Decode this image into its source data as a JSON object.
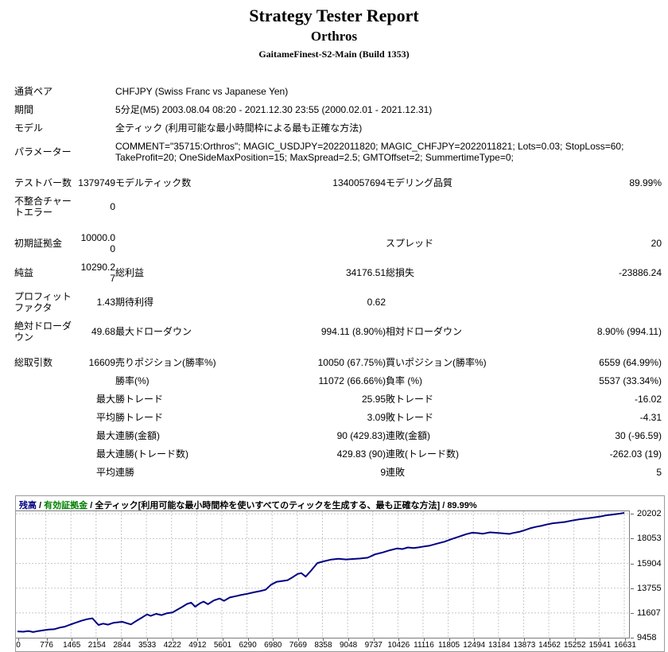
{
  "header": {
    "title": "Strategy Tester Report",
    "ea_name": "Orthros",
    "terminal": "GaitameFinest-S2-Main (Build 1353)"
  },
  "info_rows": [
    {
      "label": "通貨ペア",
      "value": "CHFJPY (Swiss Franc vs Japanese Yen)"
    },
    {
      "label": "期間",
      "value": "5分足(M5) 2003.08.04 08:20 - 2021.12.30 23:55 (2000.02.01 - 2021.12.31)"
    },
    {
      "label": "モデル",
      "value": "全ティック (利用可能な最小時間枠による最も正確な方法)"
    },
    {
      "label": "パラメーター",
      "value": "COMMENT=\"35715:Orthros\"; MAGIC_USDJPY=2022011820; MAGIC_CHFJPY=2022011821; Lots=0.03; StopLoss=60; TakeProfit=20; OneSideMaxPosition=15; MaxSpread=2.5; GMTOffset=2; SummertimeType=0;"
    }
  ],
  "stat_rows": [
    {
      "gap": true,
      "cells": [
        "テストバー数",
        "1379749",
        "モデルティック数",
        "1340057694",
        "モデリング品質",
        "89.99%"
      ]
    },
    {
      "gap": false,
      "cells": [
        "不整合チャートエラー",
        "0",
        "",
        "",
        "",
        ""
      ]
    },
    {
      "gap": true,
      "cells": [
        "初期証拠金",
        "10000.00",
        "",
        "",
        "スプレッド",
        "20"
      ]
    },
    {
      "gap": false,
      "cells": [
        "純益",
        "10290.27",
        "総利益",
        "34176.51",
        "総損失",
        "-23886.24"
      ]
    },
    {
      "gap": false,
      "cells": [
        "プロフィットファクタ",
        "1.43",
        "期待利得",
        "0.62",
        "",
        ""
      ]
    },
    {
      "gap": false,
      "cells": [
        "絶対ドローダウン",
        "49.68",
        "最大ドローダウン",
        "994.11 (8.90%)",
        "相対ドローダウン",
        "8.90% (994.11)"
      ]
    },
    {
      "gap": true,
      "cells": [
        "総取引数",
        "16609",
        "売りポジション(勝率%)",
        "10050 (67.75%)",
        "買いポジション(勝率%)",
        "6559 (64.99%)"
      ]
    },
    {
      "gap": false,
      "cells": [
        "",
        "",
        "勝率(%)",
        "11072 (66.66%)",
        "負率 (%)",
        "5537 (33.34%)"
      ]
    },
    {
      "gap": false,
      "cells": [
        "",
        "最大",
        "勝トレード",
        "25.95",
        "敗トレード",
        "-16.02"
      ]
    },
    {
      "gap": false,
      "cells": [
        "",
        "平均",
        "勝トレード",
        "3.09",
        "敗トレード",
        "-4.31"
      ]
    },
    {
      "gap": false,
      "cells": [
        "",
        "最大",
        "連勝(金額)",
        "90 (429.83)",
        "連敗(金額)",
        "30 (-96.59)"
      ]
    },
    {
      "gap": false,
      "cells": [
        "",
        "最大",
        "連勝(トレード数)",
        "429.83 (90)",
        "連敗(トレード数)",
        "-262.03 (19)"
      ]
    },
    {
      "gap": false,
      "cells": [
        "",
        "平均",
        "連勝",
        "9",
        "連敗",
        "5"
      ]
    }
  ],
  "chart_data": {
    "type": "line",
    "title": "",
    "xlabel": "",
    "ylabel": "",
    "x_max": 16631,
    "ylim": [
      9458,
      20430
    ],
    "x_ticks": [
      0,
      776,
      1465,
      2154,
      2844,
      3533,
      4222,
      4912,
      5601,
      6290,
      6980,
      7669,
      8358,
      9048,
      9737,
      10426,
      11116,
      11805,
      12494,
      13184,
      13873,
      14562,
      15252,
      15941,
      16631
    ],
    "y_ticks": [
      9458,
      11607,
      13755,
      15904,
      18053,
      20202
    ],
    "grid_color": "#c8c8c8",
    "plot_border_color": "#7a7a7a",
    "caption": {
      "balance_label": "残高",
      "equity_label": "有効証拠金",
      "separator": " / ",
      "model_label": "全ティック[利用可能な最小時間枠を使いすべてのティックを生成する、最も正確な方法]",
      "quality": "89.99%",
      "balance_color": "#000080",
      "equity_color": "#008000"
    },
    "series": [
      {
        "name": "残高",
        "color": "#000082",
        "points": [
          [
            0,
            10000
          ],
          [
            160,
            9975
          ],
          [
            300,
            10040
          ],
          [
            430,
            9951
          ],
          [
            560,
            10030
          ],
          [
            700,
            10090
          ],
          [
            850,
            10160
          ],
          [
            1000,
            10190
          ],
          [
            1150,
            10330
          ],
          [
            1300,
            10420
          ],
          [
            1450,
            10600
          ],
          [
            1600,
            10760
          ],
          [
            1750,
            10930
          ],
          [
            1900,
            11060
          ],
          [
            2050,
            11140
          ],
          [
            2130,
            10870
          ],
          [
            2220,
            10560
          ],
          [
            2350,
            10680
          ],
          [
            2480,
            10590
          ],
          [
            2620,
            10740
          ],
          [
            2750,
            10800
          ],
          [
            2870,
            10840
          ],
          [
            2990,
            10720
          ],
          [
            3110,
            10610
          ],
          [
            3250,
            10900
          ],
          [
            3400,
            11180
          ],
          [
            3550,
            11480
          ],
          [
            3650,
            11350
          ],
          [
            3800,
            11530
          ],
          [
            3950,
            11420
          ],
          [
            4100,
            11580
          ],
          [
            4250,
            11650
          ],
          [
            4400,
            11930
          ],
          [
            4520,
            12140
          ],
          [
            4650,
            12390
          ],
          [
            4760,
            12500
          ],
          [
            4870,
            12150
          ],
          [
            5000,
            12440
          ],
          [
            5100,
            12590
          ],
          [
            5220,
            12360
          ],
          [
            5380,
            12690
          ],
          [
            5540,
            12860
          ],
          [
            5660,
            12660
          ],
          [
            5820,
            12950
          ],
          [
            5980,
            13060
          ],
          [
            6140,
            13180
          ],
          [
            6300,
            13270
          ],
          [
            6470,
            13390
          ],
          [
            6650,
            13500
          ],
          [
            6800,
            13620
          ],
          [
            6950,
            14060
          ],
          [
            7100,
            14300
          ],
          [
            7250,
            14370
          ],
          [
            7400,
            14450
          ],
          [
            7550,
            14720
          ],
          [
            7680,
            14990
          ],
          [
            7780,
            15060
          ],
          [
            7900,
            14760
          ],
          [
            8050,
            15290
          ],
          [
            8220,
            15940
          ],
          [
            8400,
            16090
          ],
          [
            8600,
            16240
          ],
          [
            8800,
            16300
          ],
          [
            9000,
            16250
          ],
          [
            9200,
            16290
          ],
          [
            9400,
            16330
          ],
          [
            9600,
            16400
          ],
          [
            9800,
            16690
          ],
          [
            10000,
            16850
          ],
          [
            10200,
            17040
          ],
          [
            10400,
            17200
          ],
          [
            10550,
            17150
          ],
          [
            10700,
            17290
          ],
          [
            10850,
            17240
          ],
          [
            11000,
            17300
          ],
          [
            11150,
            17380
          ],
          [
            11300,
            17450
          ],
          [
            11500,
            17620
          ],
          [
            11700,
            17790
          ],
          [
            11900,
            18020
          ],
          [
            12100,
            18230
          ],
          [
            12300,
            18440
          ],
          [
            12460,
            18570
          ],
          [
            12600,
            18540
          ],
          [
            12750,
            18480
          ],
          [
            12950,
            18600
          ],
          [
            13100,
            18570
          ],
          [
            13300,
            18520
          ],
          [
            13480,
            18460
          ],
          [
            13600,
            18550
          ],
          [
            13750,
            18640
          ],
          [
            13900,
            18790
          ],
          [
            14050,
            18950
          ],
          [
            14200,
            19070
          ],
          [
            14350,
            19160
          ],
          [
            14500,
            19280
          ],
          [
            14670,
            19390
          ],
          [
            14850,
            19440
          ],
          [
            15000,
            19500
          ],
          [
            15200,
            19620
          ],
          [
            15400,
            19730
          ],
          [
            15600,
            19810
          ],
          [
            15800,
            19890
          ],
          [
            16000,
            19990
          ],
          [
            16120,
            20070
          ],
          [
            16250,
            20120
          ],
          [
            16400,
            20180
          ],
          [
            16520,
            20230
          ],
          [
            16631,
            20290
          ]
        ]
      }
    ]
  }
}
